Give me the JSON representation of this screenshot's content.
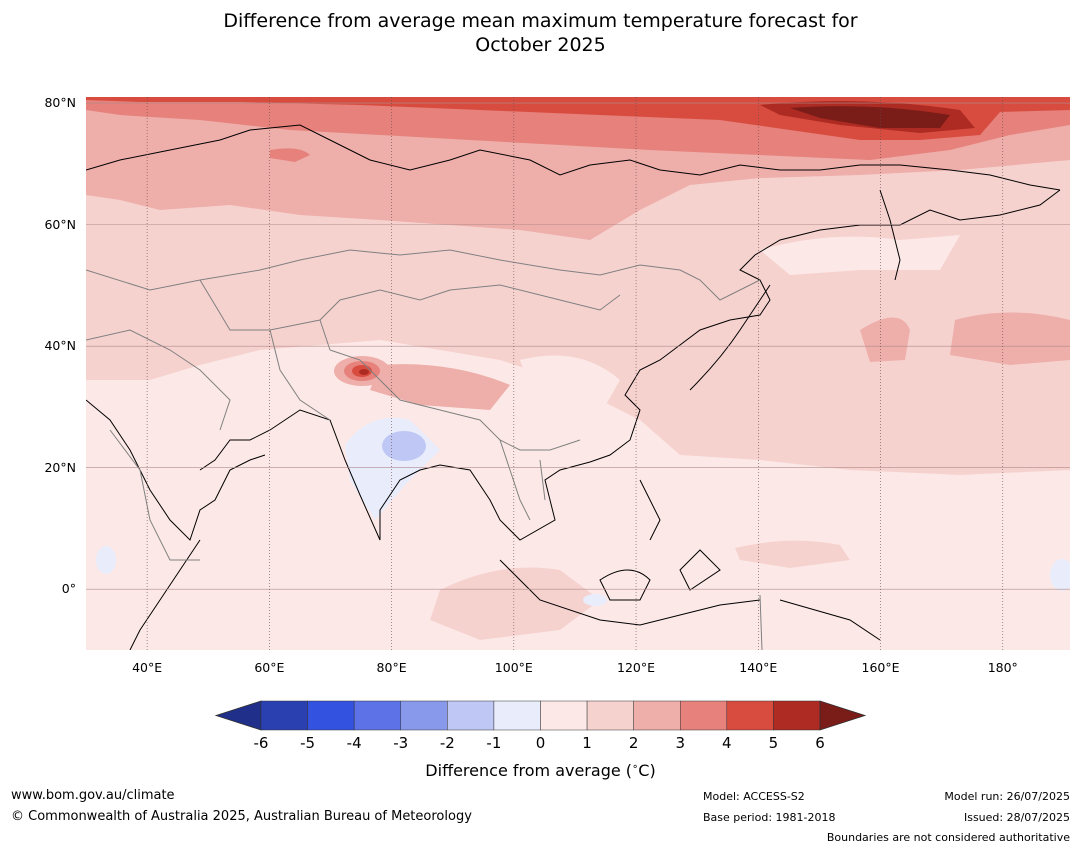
{
  "title": {
    "line1": "Difference from average mean maximum temperature forecast for",
    "line2": "October 2025"
  },
  "map": {
    "lat_labels": [
      {
        "label": "80°N",
        "lat": 80
      },
      {
        "label": "60°N",
        "lat": 60
      },
      {
        "label": "40°N",
        "lat": 40
      },
      {
        "label": "20°N",
        "lat": 20
      },
      {
        "label": "0°",
        "lat": 0
      }
    ],
    "lon_labels": [
      {
        "label": "40°E",
        "lon": 40
      },
      {
        "label": "60°E",
        "lon": 60
      },
      {
        "label": "80°E",
        "lon": 80
      },
      {
        "label": "100°E",
        "lon": 100
      },
      {
        "label": "120°E",
        "lon": 120
      },
      {
        "label": "140°E",
        "lon": 140
      },
      {
        "label": "160°E",
        "lon": 160
      },
      {
        "label": "180°",
        "lon": 180
      }
    ],
    "extent": {
      "lon_min": 30,
      "lon_max": 191,
      "lat_min": -10,
      "lat_max": 81
    },
    "background_color": "#fce9e7"
  },
  "colorbar": {
    "ticks": [
      "-6",
      "-5",
      "-4",
      "-3",
      "-2",
      "-1",
      "0",
      "1",
      "2",
      "3",
      "4",
      "5",
      "6"
    ],
    "colors": [
      "#1f2f8a",
      "#2a3fb0",
      "#3352e0",
      "#5c72e6",
      "#8899ec",
      "#bfc8f5",
      "#e8ecfb",
      "#fce9e7",
      "#f6d2cf",
      "#eeaeaa",
      "#e6817b",
      "#d84c40",
      "#ad2b22",
      "#7a1c17"
    ],
    "label": "Difference from average ($^\\circ$C)"
  },
  "footer": {
    "url": "www.bom.gov.au/climate",
    "copyright": "© Commonwealth of Australia 2025, Australian Bureau of Meteorology",
    "model": "Model: ACCESS-S2",
    "base_period": "Base period: 1981-2018",
    "model_run": "Model run: 26/07/2025",
    "issued": "Issued: 28/07/2025",
    "boundaries_note": "Boundaries are not considered authoritative"
  }
}
